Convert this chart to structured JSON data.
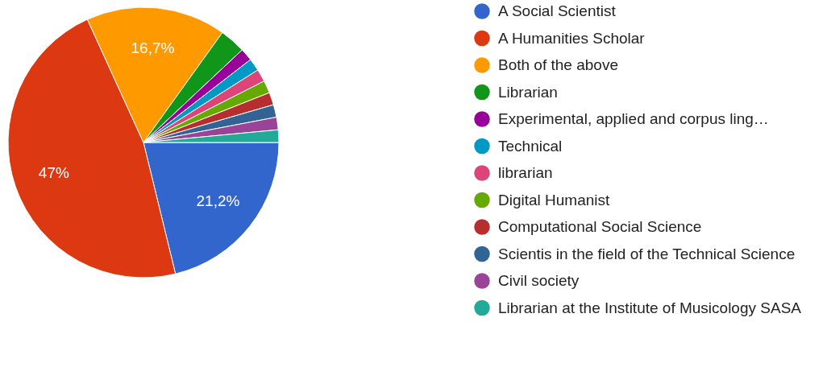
{
  "chart_data": {
    "type": "pie",
    "categories": [
      "A Social Scientist",
      "A Humanities Scholar",
      "Both of the above",
      "Librarian",
      "Experimental, applied and corpus ling…",
      "Technical",
      "librarian",
      "Digital Humanist",
      "Computational Social Science",
      "Scientis in the field of the Technical Science",
      "Civil society",
      "Librarian at the Institute of Musicology SASA"
    ],
    "values": [
      21.2,
      47,
      16.7,
      3.1,
      1.5,
      1.5,
      1.5,
      1.5,
      1.5,
      1.5,
      1.5,
      1.5
    ],
    "colors": [
      "#3366cc",
      "#dc3912",
      "#ff9900",
      "#109618",
      "#990099",
      "#0099c6",
      "#dd4477",
      "#66aa00",
      "#b82e2e",
      "#316395",
      "#994499",
      "#22aa99"
    ],
    "value_labels": [
      "21,2%",
      "47%",
      "16,7%",
      null,
      null,
      null,
      null,
      null,
      null,
      null,
      null,
      null
    ],
    "legend": "right"
  }
}
